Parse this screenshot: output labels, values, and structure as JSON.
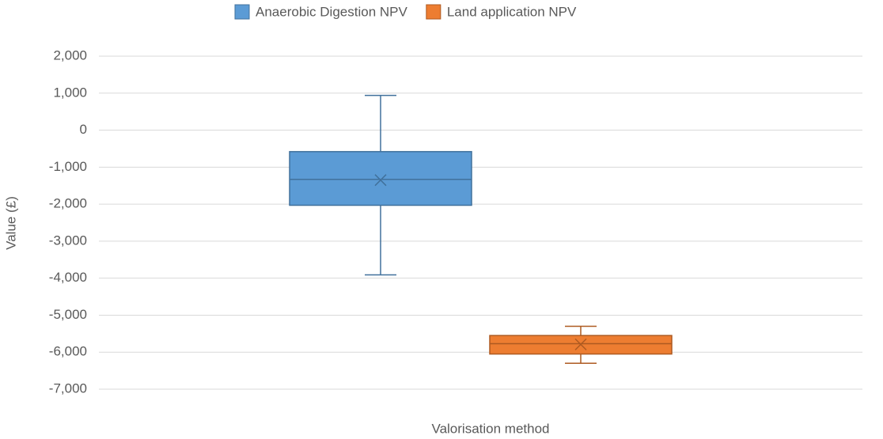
{
  "chart_data": {
    "type": "box",
    "x_label": "Valorisation method",
    "y_label": "Value (£)",
    "series": [
      {
        "name": "Anaerobic Digestion NPV",
        "color": "#5b9bd5",
        "stroke": "#41719c",
        "min": -3910,
        "q1": -2030,
        "median": -1330,
        "q3": -580,
        "max": 940,
        "mean": -1350
      },
      {
        "name": "Land application NPV",
        "color": "#ed7d31",
        "stroke": "#ae5a21",
        "min": -6300,
        "q1": -6050,
        "median": -5770,
        "q3": -5550,
        "max": -5300,
        "mean": -5790
      }
    ],
    "ylim": [
      -7000,
      2000
    ],
    "yticks": [
      {
        "value": -7000,
        "label": "-7,000"
      },
      {
        "value": -6000,
        "label": "-6,000"
      },
      {
        "value": -5000,
        "label": "-5,000"
      },
      {
        "value": -4000,
        "label": "-4,000"
      },
      {
        "value": -3000,
        "label": "-3,000"
      },
      {
        "value": -2000,
        "label": "-2,000"
      },
      {
        "value": -1000,
        "label": "-1,000"
      },
      0,
      {
        "value": 1000,
        "label": "1,000"
      },
      {
        "value": 2000,
        "label": "2,000"
      }
    ],
    "grid": true,
    "legend": "top"
  }
}
